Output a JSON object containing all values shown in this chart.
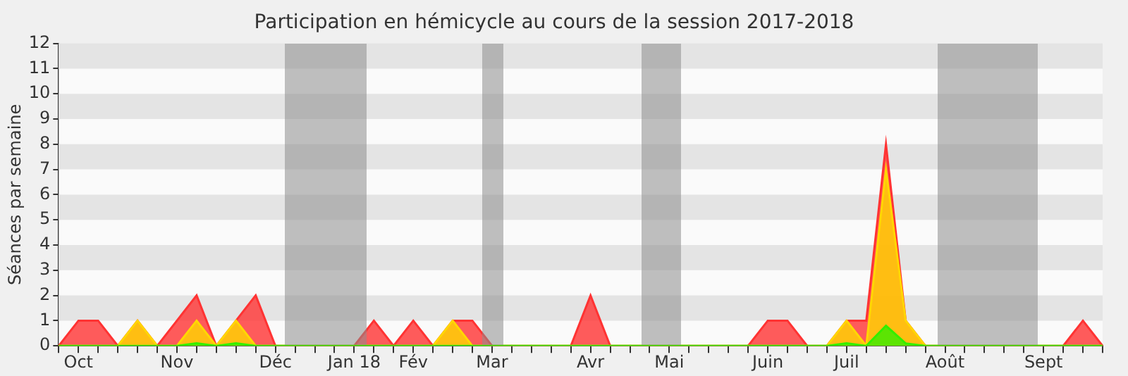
{
  "chart_data": {
    "type": "area",
    "title": "Participation en hémicycle au cours de la session 2017-2018",
    "ylabel": "Séances par semaine",
    "categories": [
      null,
      "Oct",
      null,
      null,
      null,
      null,
      "Nov",
      null,
      null,
      null,
      null,
      "Déc",
      null,
      null,
      null,
      "Jan 18",
      null,
      null,
      "Fév",
      null,
      null,
      null,
      "Mar",
      null,
      null,
      null,
      null,
      "Avr",
      null,
      null,
      null,
      "Mai",
      null,
      null,
      null,
      null,
      "Juin",
      null,
      null,
      null,
      "Juil",
      null,
      null,
      null,
      null,
      "Août",
      null,
      null,
      null,
      null,
      "Sept",
      null,
      null,
      null
    ],
    "series": [
      {
        "color": "#ff3333",
        "values": [
          0,
          1,
          1,
          0,
          1,
          0,
          1,
          2,
          0,
          1,
          2,
          0,
          0,
          0,
          0,
          0,
          1,
          0,
          1,
          0,
          1,
          1,
          0,
          0,
          0,
          0,
          0,
          2,
          0,
          0,
          0,
          0,
          0,
          0,
          0,
          0,
          1,
          1,
          0,
          0,
          1,
          1,
          8,
          1,
          0,
          0,
          0,
          0,
          0,
          0,
          0,
          0,
          1,
          0
        ]
      },
      {
        "color": "#ffd700",
        "values": [
          0,
          0,
          0,
          0,
          1,
          0,
          0,
          1,
          0,
          1,
          0,
          0,
          0,
          0,
          0,
          0,
          0,
          0,
          0,
          0,
          1,
          0,
          0,
          0,
          0,
          0,
          0,
          0,
          0,
          0,
          0,
          0,
          0,
          0,
          0,
          0,
          0,
          0,
          0,
          0,
          1,
          0,
          7,
          1,
          0,
          0,
          0,
          0,
          0,
          0,
          0,
          0,
          0,
          0
        ]
      },
      {
        "color": "#33ee00",
        "values": [
          0,
          0,
          0,
          0,
          0,
          0,
          0,
          0.1,
          0,
          0.1,
          0,
          0,
          0,
          0,
          0,
          0,
          0,
          0,
          0,
          0,
          0,
          0,
          0,
          0,
          0,
          0,
          0,
          0,
          0,
          0,
          0,
          0,
          0,
          0,
          0,
          0,
          0,
          0,
          0,
          0,
          0.1,
          0,
          0.8,
          0.1,
          0,
          0,
          0,
          0,
          0,
          0,
          0,
          0,
          0,
          0
        ]
      }
    ],
    "ylim": [
      0,
      12
    ],
    "yticks": [
      0,
      1,
      2,
      3,
      4,
      5,
      6,
      7,
      8,
      9,
      10,
      11,
      12
    ],
    "legend": false
  }
}
